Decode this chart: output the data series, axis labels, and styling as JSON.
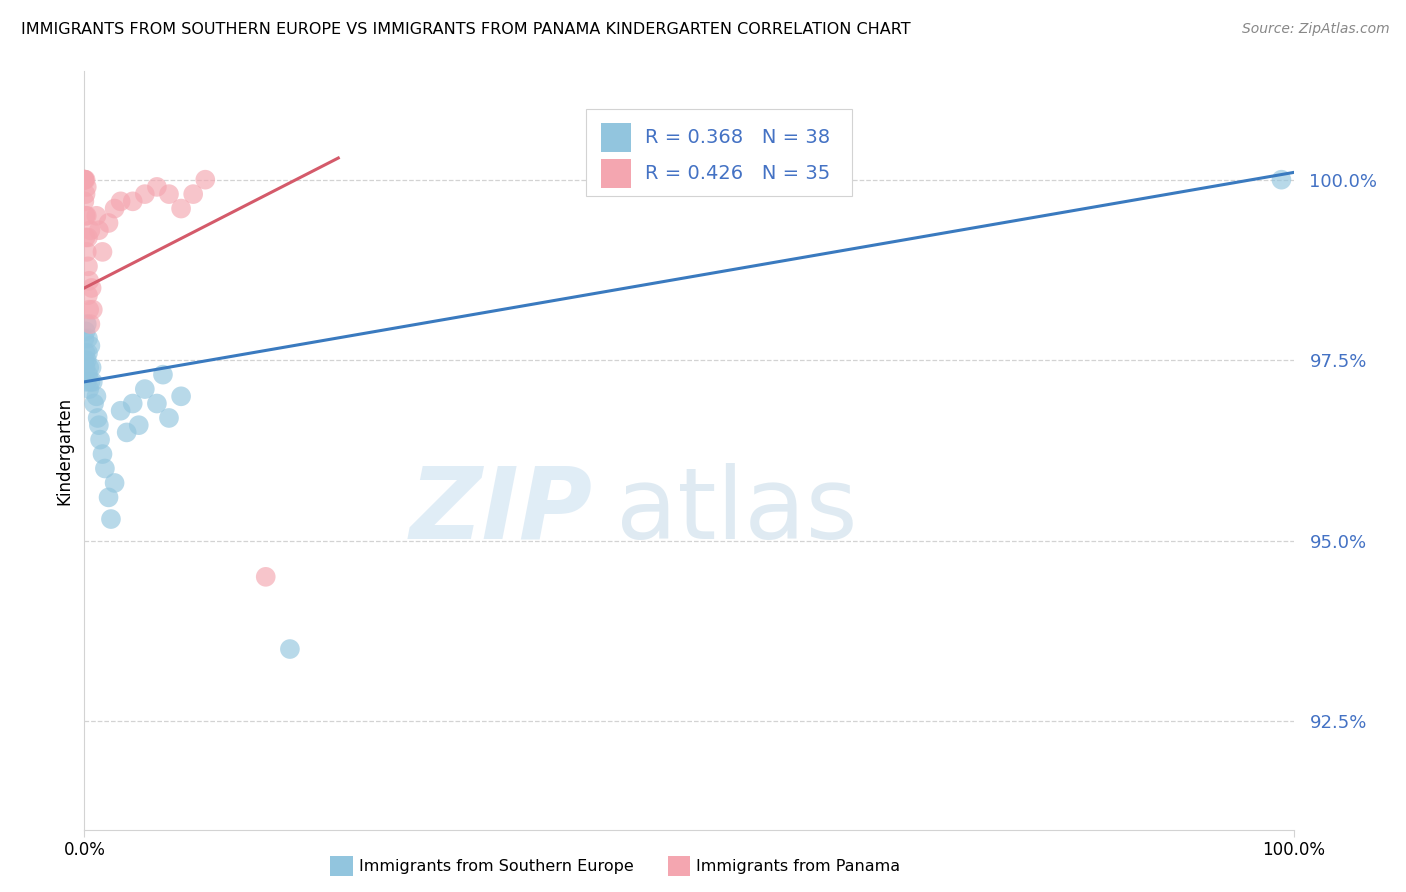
{
  "title": "IMMIGRANTS FROM SOUTHERN EUROPE VS IMMIGRANTS FROM PANAMA KINDERGARTEN CORRELATION CHART",
  "source": "Source: ZipAtlas.com",
  "ylabel": "Kindergarten",
  "ytick_vals": [
    92.5,
    95.0,
    97.5,
    100.0
  ],
  "ytick_labels": [
    "92.5%",
    "95.0%",
    "97.5%",
    "100.0%"
  ],
  "xlim": [
    0.0,
    1.0
  ],
  "ylim": [
    91.0,
    101.5
  ],
  "blue_R": "R = 0.368",
  "blue_N": "N = 38",
  "pink_R": "R = 0.426",
  "pink_N": "N = 35",
  "blue_color": "#92c5de",
  "pink_color": "#f4a6b0",
  "blue_line_color": "#3a7abf",
  "pink_line_color": "#d45a6a",
  "legend_label_blue": "Immigrants from Southern Europe",
  "legend_label_pink": "Immigrants from Panama",
  "watermark_zip": "ZIP",
  "watermark_atlas": "atlas",
  "blue_line_x": [
    0.0,
    1.0
  ],
  "blue_line_y": [
    97.2,
    100.1
  ],
  "pink_line_x": [
    0.0,
    0.21
  ],
  "pink_line_y": [
    98.5,
    100.3
  ],
  "blue_points_x": [
    0.0,
    0.0,
    0.001,
    0.001,
    0.001,
    0.002,
    0.002,
    0.002,
    0.003,
    0.003,
    0.003,
    0.004,
    0.004,
    0.005,
    0.005,
    0.006,
    0.007,
    0.008,
    0.01,
    0.011,
    0.012,
    0.013,
    0.015,
    0.017,
    0.02,
    0.022,
    0.025,
    0.03,
    0.035,
    0.04,
    0.045,
    0.05,
    0.06,
    0.065,
    0.07,
    0.08,
    0.17,
    0.99
  ],
  "blue_points_y": [
    97.8,
    97.5,
    97.9,
    97.4,
    97.6,
    98.0,
    97.5,
    97.2,
    97.8,
    97.3,
    97.6,
    97.4,
    97.1,
    97.7,
    97.2,
    97.4,
    97.2,
    96.9,
    97.0,
    96.7,
    96.6,
    96.4,
    96.2,
    96.0,
    95.6,
    95.3,
    95.8,
    96.8,
    96.5,
    96.9,
    96.6,
    97.1,
    96.9,
    97.3,
    96.7,
    97.0,
    93.5,
    100.0
  ],
  "pink_points_x": [
    0.0,
    0.0,
    0.0,
    0.0,
    0.0,
    0.001,
    0.001,
    0.001,
    0.001,
    0.002,
    0.002,
    0.002,
    0.003,
    0.003,
    0.003,
    0.004,
    0.004,
    0.005,
    0.005,
    0.006,
    0.007,
    0.01,
    0.012,
    0.015,
    0.02,
    0.025,
    0.03,
    0.04,
    0.05,
    0.06,
    0.07,
    0.08,
    0.09,
    0.1,
    0.15
  ],
  "pink_points_y": [
    100.0,
    100.0,
    100.0,
    100.0,
    99.7,
    100.0,
    99.8,
    99.5,
    99.2,
    99.9,
    99.5,
    99.0,
    99.2,
    98.8,
    98.4,
    98.6,
    98.2,
    99.3,
    98.0,
    98.5,
    98.2,
    99.5,
    99.3,
    99.0,
    99.4,
    99.6,
    99.7,
    99.7,
    99.8,
    99.9,
    99.8,
    99.6,
    99.8,
    100.0,
    94.5
  ]
}
